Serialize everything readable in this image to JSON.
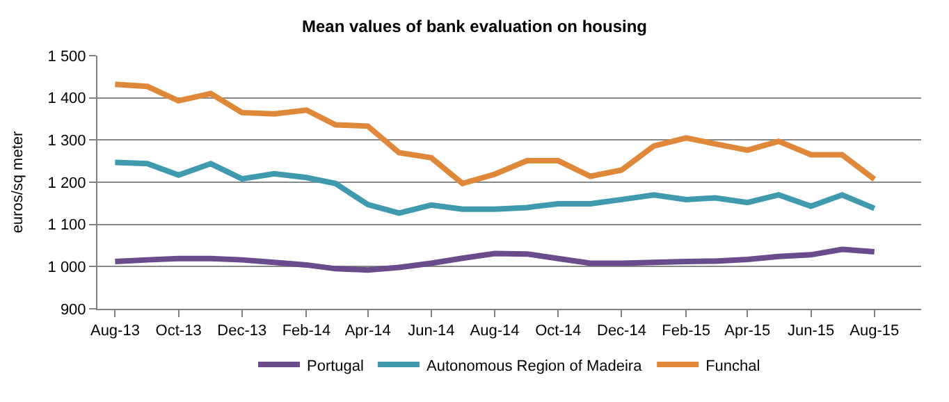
{
  "chart_data": {
    "type": "line",
    "title": "Mean values of bank evaluation on housing",
    "ylabel": "euros/sq meter",
    "x": [
      "2013-08",
      "2013-09",
      "2013-10",
      "2013-11",
      "2013-12",
      "2014-01",
      "2014-02",
      "2014-03",
      "2014-04",
      "2014-05",
      "2014-06",
      "2014-07",
      "2014-08",
      "2014-09",
      "2014-10",
      "2014-11",
      "2014-12",
      "2015-01",
      "2015-02",
      "2015-03",
      "2015-04",
      "2015-05",
      "2015-06",
      "2015-07",
      "2015-08"
    ],
    "series": [
      {
        "name": "Portugal",
        "color": "#6a4c8c",
        "values": [
          1012,
          1016,
          1019,
          1019,
          1016,
          1010,
          1004,
          995,
          992,
          998,
          1008,
          1020,
          1031,
          1030,
          1019,
          1008,
          1008,
          1010,
          1012,
          1013,
          1017,
          1024,
          1028,
          1041,
          1035
        ]
      },
      {
        "name": "Autonomous Region of Madeira",
        "color": "#3f9aae",
        "values": [
          1247,
          1244,
          1217,
          1244,
          1208,
          1220,
          1211,
          1197,
          1147,
          1127,
          1146,
          1136,
          1136,
          1140,
          1149,
          1149,
          1159,
          1170,
          1159,
          1163,
          1152,
          1170,
          1143,
          1170,
          1138
        ]
      },
      {
        "name": "Funchal",
        "color": "#e0883a",
        "values": [
          1432,
          1427,
          1393,
          1410,
          1365,
          1362,
          1371,
          1336,
          1333,
          1270,
          1258,
          1197,
          1219,
          1251,
          1251,
          1214,
          1229,
          1286,
          1305,
          1291,
          1276,
          1297,
          1265,
          1265,
          1207
        ]
      }
    ],
    "xlim": [
      "2013-07-15",
      "2015-09-15"
    ],
    "xticks": [
      {
        "value": "2013-08",
        "label": "Aug-13"
      },
      {
        "value": "2013-10",
        "label": "Oct-13"
      },
      {
        "value": "2013-12",
        "label": "Dec-13"
      },
      {
        "value": "2014-02",
        "label": "Feb-14"
      },
      {
        "value": "2014-04",
        "label": "Apr-14"
      },
      {
        "value": "2014-06",
        "label": "Jun-14"
      },
      {
        "value": "2014-08",
        "label": "Aug-14"
      },
      {
        "value": "2014-10",
        "label": "Oct-14"
      },
      {
        "value": "2014-12",
        "label": "Dec-14"
      },
      {
        "value": "2015-02",
        "label": "Feb-15"
      },
      {
        "value": "2015-04",
        "label": "Apr-15"
      },
      {
        "value": "2015-06",
        "label": "Jun-15"
      },
      {
        "value": "2015-08",
        "label": "Aug-15"
      }
    ],
    "ylim": [
      900,
      1500
    ],
    "yticks": [
      {
        "value": 900,
        "label": "900"
      },
      {
        "value": 1000,
        "label": "1 000"
      },
      {
        "value": 1100,
        "label": "1 100"
      },
      {
        "value": 1200,
        "label": "1 200"
      },
      {
        "value": 1300,
        "label": "1 300"
      },
      {
        "value": 1400,
        "label": "1 400"
      },
      {
        "value": 1500,
        "label": "1 500"
      }
    ],
    "grid": "y",
    "legend": "bottom",
    "marker": "none",
    "line_style": "solid"
  }
}
